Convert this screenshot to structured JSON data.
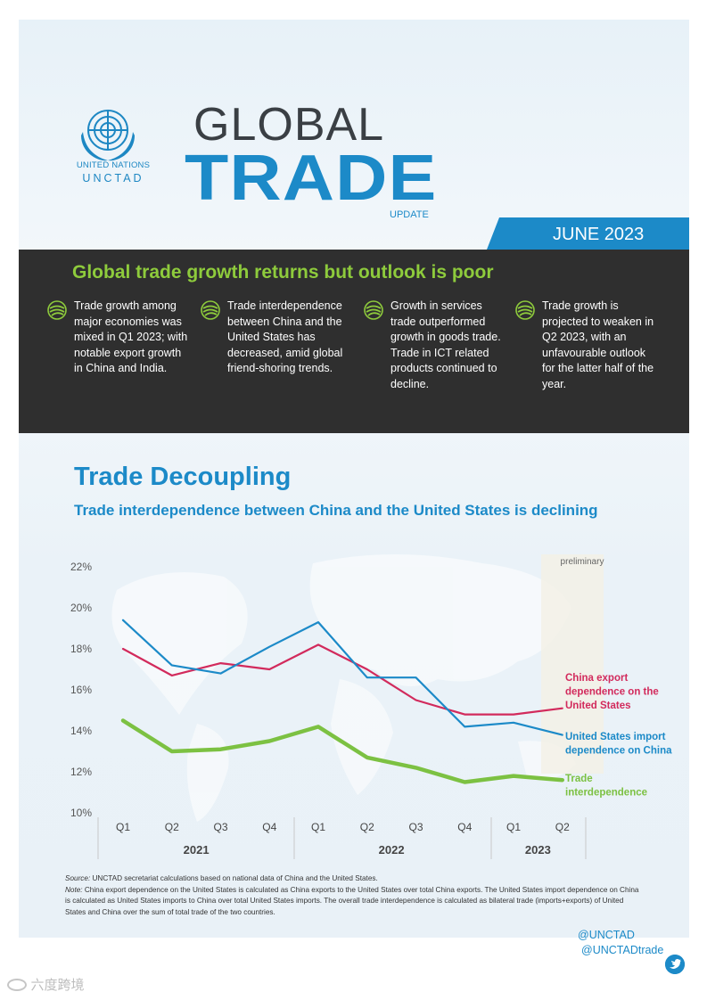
{
  "header": {
    "org_name": "UNITED NATIONS",
    "org_short": "UNCTAD",
    "title_word1": "GLOBAL",
    "title_word2": "TRADE",
    "title_word3": "UPDATE",
    "date": "JUNE 2023"
  },
  "summary": {
    "title": "Global trade growth returns but outlook is poor",
    "bullets": [
      "Trade growth among major economies was mixed in Q1 2023; with notable export growth in China and India.",
      "Trade interdependence between China and the United States has decreased, amid global friend-shoring trends.",
      "Growth in services trade outperformed growth in goods trade. Trade in ICT related products continued to decline.",
      "Trade growth is projected to weaken in Q2 2023, with an unfavourable outlook for the latter half of the year."
    ]
  },
  "section": {
    "title": "Trade Decoupling",
    "subtitle": "Trade interdependence between China and the United States is declining"
  },
  "chart_data": {
    "type": "line",
    "categories": [
      "Q1",
      "Q2",
      "Q3",
      "Q4",
      "Q1",
      "Q2",
      "Q3",
      "Q4",
      "Q1",
      "Q2"
    ],
    "year_groups": [
      {
        "label": "2021",
        "span": [
          0,
          3
        ]
      },
      {
        "label": "2022",
        "span": [
          4,
          7
        ]
      },
      {
        "label": "2023",
        "span": [
          8,
          9
        ]
      }
    ],
    "y_ticks": [
      "22%",
      "20%",
      "18%",
      "16%",
      "14%",
      "12%",
      "10%"
    ],
    "ylim": [
      10,
      22
    ],
    "grid": false,
    "annotation": "preliminary",
    "series": [
      {
        "name": "China export dependence on the United States",
        "color": "#d22a5c",
        "values": [
          18.0,
          16.7,
          17.3,
          17.0,
          18.2,
          17.0,
          15.5,
          14.8,
          14.8,
          15.1
        ]
      },
      {
        "name": "United States import dependence on China",
        "color": "#1c8ac8",
        "values": [
          19.4,
          17.2,
          16.8,
          18.1,
          19.3,
          16.6,
          16.6,
          14.2,
          14.4,
          13.8
        ]
      },
      {
        "name": "Trade interdependence",
        "color": "#7cc142",
        "values": [
          14.5,
          13.0,
          13.1,
          13.5,
          14.2,
          12.7,
          12.2,
          11.5,
          11.8,
          11.6
        ]
      }
    ],
    "labels": [
      {
        "lines": [
          "China export",
          "dependence on the",
          "United States"
        ],
        "color": "#d22a5c"
      },
      {
        "lines": [
          "United States import",
          "dependence on China"
        ],
        "color": "#1c8ac8"
      },
      {
        "lines": [
          "Trade",
          "interdependence"
        ],
        "color": "#7cc142"
      }
    ]
  },
  "notes": {
    "source_label": "Source:",
    "source_text": "UNCTAD secretariat calculations based on national data of China and the United States.",
    "note_label": "Note:",
    "note_text": "China export dependence on the United States is calculated as China exports to the United States over total China exports. The United States import dependence on China is calculated as United States imports to China over total United States imports. The overall trade interdependence is calculated as bilateral trade (imports+exports) of United States and China over the sum of total trade of the two countries."
  },
  "footer": {
    "handle1": "@UNCTAD",
    "handle2": "@UNCTADtrade"
  },
  "watermark": "六度跨境"
}
